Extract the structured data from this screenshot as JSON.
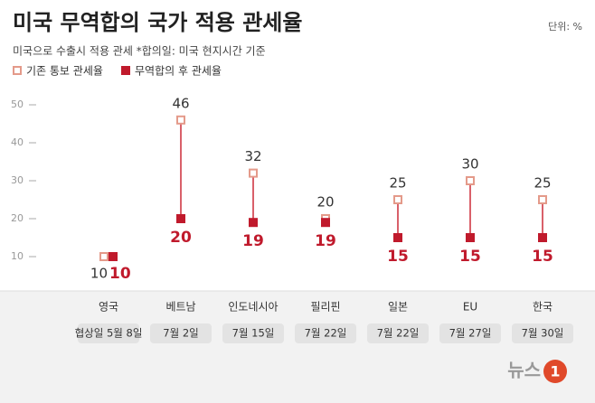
{
  "chart_data": {
    "type": "dumbbell",
    "title": "미국 무역합의 국가 적용 관세율",
    "subtitle": "미국으로 수출시 적용 관세   *합의일: 미국 현지시간 기준",
    "unit": "단위: %",
    "categories": [
      "영국",
      "베트남",
      "인도네시아",
      "필리핀",
      "일본",
      "EU",
      "한국"
    ],
    "dates": [
      "협상일 5월 8일",
      "7월 2일",
      "7월 15일",
      "7월 22일",
      "7월 22일",
      "7월 27일",
      "7월 30일"
    ],
    "series": [
      {
        "name": "기존 통보 관세율",
        "color": "#e49a8a",
        "values": [
          10,
          46,
          32,
          20,
          25,
          30,
          25
        ]
      },
      {
        "name": "무역합의 후 관세율",
        "color": "#c01a2c",
        "values": [
          10,
          20,
          19,
          19,
          15,
          15,
          15
        ]
      }
    ],
    "ylim": [
      0,
      55
    ],
    "yticks": [
      10,
      20,
      30,
      40,
      50
    ],
    "logo": {
      "text": "뉴스",
      "mark": "1"
    }
  }
}
